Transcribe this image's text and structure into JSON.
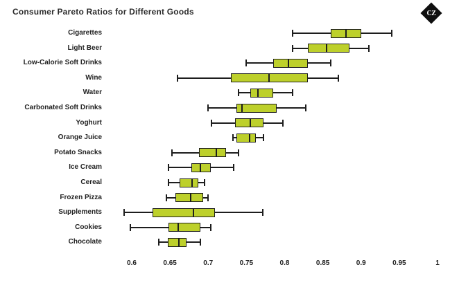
{
  "header": {
    "title": "Consumer Pareto Ratios for Different Goods",
    "logo_text": "CZ"
  },
  "colors": {
    "box_fill": "#bdd02b",
    "line": "#1d1d1d",
    "text": "#222222",
    "background": "#ffffff",
    "logo_background": "#0f0f0f"
  },
  "chart_data": {
    "type": "boxplot",
    "orientation": "horizontal",
    "title": "Consumer Pareto Ratios for Different Goods",
    "xlabel": "",
    "ylabel": "",
    "grid": false,
    "legend": false,
    "xlim": [
      0.57,
      1.0
    ],
    "x_ticks": [
      0.6,
      0.65,
      0.7,
      0.75,
      0.8,
      0.85,
      0.9,
      0.95,
      1
    ],
    "x_tick_labels": [
      "0.6",
      "0.65",
      "0.7",
      "0.75",
      "0.8",
      "0.85",
      "0.9",
      "0.95",
      "1"
    ],
    "categories": [
      "Cigarettes",
      "Light Beer",
      "Low-Calorie Soft Drinks",
      "Wine",
      "Water",
      "Carbonated Soft Drinks",
      "Yoghurt",
      "Orange Juice",
      "Potato Snacks",
      "Ice Cream",
      "Cereal",
      "Frozen Pizza",
      "Supplements",
      "Cookies",
      "Chocolate"
    ],
    "series": [
      {
        "category": "Cigarettes",
        "whisker_low": 0.81,
        "q1": 0.86,
        "median": 0.88,
        "q3": 0.9,
        "whisker_high": 0.94
      },
      {
        "category": "Light Beer",
        "whisker_low": 0.81,
        "q1": 0.83,
        "median": 0.855,
        "q3": 0.885,
        "whisker_high": 0.91
      },
      {
        "category": "Low-Calorie Soft Drinks",
        "whisker_low": 0.75,
        "q1": 0.785,
        "median": 0.805,
        "q3": 0.83,
        "whisker_high": 0.86
      },
      {
        "category": "Wine",
        "whisker_low": 0.66,
        "q1": 0.73,
        "median": 0.78,
        "q3": 0.83,
        "whisker_high": 0.87
      },
      {
        "category": "Water",
        "whisker_low": 0.74,
        "q1": 0.755,
        "median": 0.765,
        "q3": 0.785,
        "whisker_high": 0.81
      },
      {
        "category": "Carbonated Soft Drinks",
        "whisker_low": 0.7,
        "q1": 0.737,
        "median": 0.744,
        "q3": 0.79,
        "whisker_high": 0.828
      },
      {
        "category": "Yoghurt",
        "whisker_low": 0.704,
        "q1": 0.735,
        "median": 0.755,
        "q3": 0.772,
        "whisker_high": 0.798
      },
      {
        "category": "Orange Juice",
        "whisker_low": 0.732,
        "q1": 0.737,
        "median": 0.754,
        "q3": 0.762,
        "whisker_high": 0.772
      },
      {
        "category": "Potato Snacks",
        "whisker_low": 0.653,
        "q1": 0.688,
        "median": 0.711,
        "q3": 0.723,
        "whisker_high": 0.74
      },
      {
        "category": "Ice Cream",
        "whisker_low": 0.648,
        "q1": 0.678,
        "median": 0.69,
        "q3": 0.703,
        "whisker_high": 0.733
      },
      {
        "category": "Cereal",
        "whisker_low": 0.648,
        "q1": 0.663,
        "median": 0.679,
        "q3": 0.687,
        "whisker_high": 0.695
      },
      {
        "category": "Frozen Pizza",
        "whisker_low": 0.645,
        "q1": 0.657,
        "median": 0.677,
        "q3": 0.693,
        "whisker_high": 0.7
      },
      {
        "category": "Supplements",
        "whisker_low": 0.59,
        "q1": 0.627,
        "median": 0.681,
        "q3": 0.709,
        "whisker_high": 0.771
      },
      {
        "category": "Cookies",
        "whisker_low": 0.598,
        "q1": 0.648,
        "median": 0.661,
        "q3": 0.69,
        "whisker_high": 0.703
      },
      {
        "category": "Chocolate",
        "whisker_low": 0.635,
        "q1": 0.647,
        "median": 0.662,
        "q3": 0.672,
        "whisker_high": 0.69
      }
    ]
  }
}
